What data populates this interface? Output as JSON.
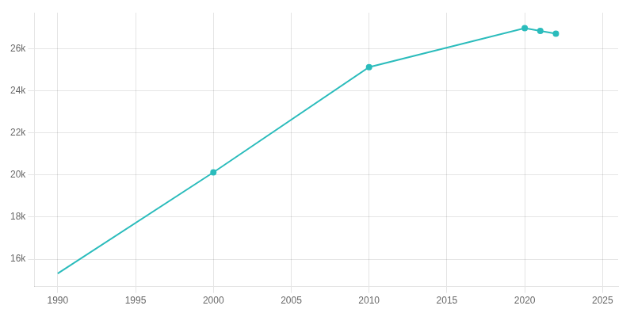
{
  "chart_data": {
    "type": "line",
    "series": [
      {
        "x": [
          1990,
          2000,
          2010,
          2020,
          2021,
          2022
        ],
        "values": [
          15319,
          20120,
          25113,
          26963,
          26836,
          26700
        ],
        "color": "#2bbcbc",
        "marker": "none",
        "line_style": "solid"
      },
      {
        "x": [
          2000,
          2010,
          2020,
          2021,
          2022
        ],
        "values": [
          20120,
          25113,
          26963,
          26836,
          26700
        ],
        "color": "#2bbcbc",
        "marker": "o",
        "line_style": "none"
      }
    ],
    "xlim": [
      1988.5,
      2026
    ],
    "xticks": [
      1990,
      1995,
      2000,
      2005,
      2010,
      2015,
      2020,
      2025
    ],
    "ylim": [
      14700,
      27700
    ],
    "yticks": [
      {
        "value": 16000,
        "label": "16k"
      },
      {
        "value": 18000,
        "label": "18k"
      },
      {
        "value": 20000,
        "label": "20k"
      },
      {
        "value": 22000,
        "label": "22k"
      },
      {
        "value": 24000,
        "label": "24k"
      },
      {
        "value": 26000,
        "label": "26k"
      }
    ],
    "grid": true
  }
}
